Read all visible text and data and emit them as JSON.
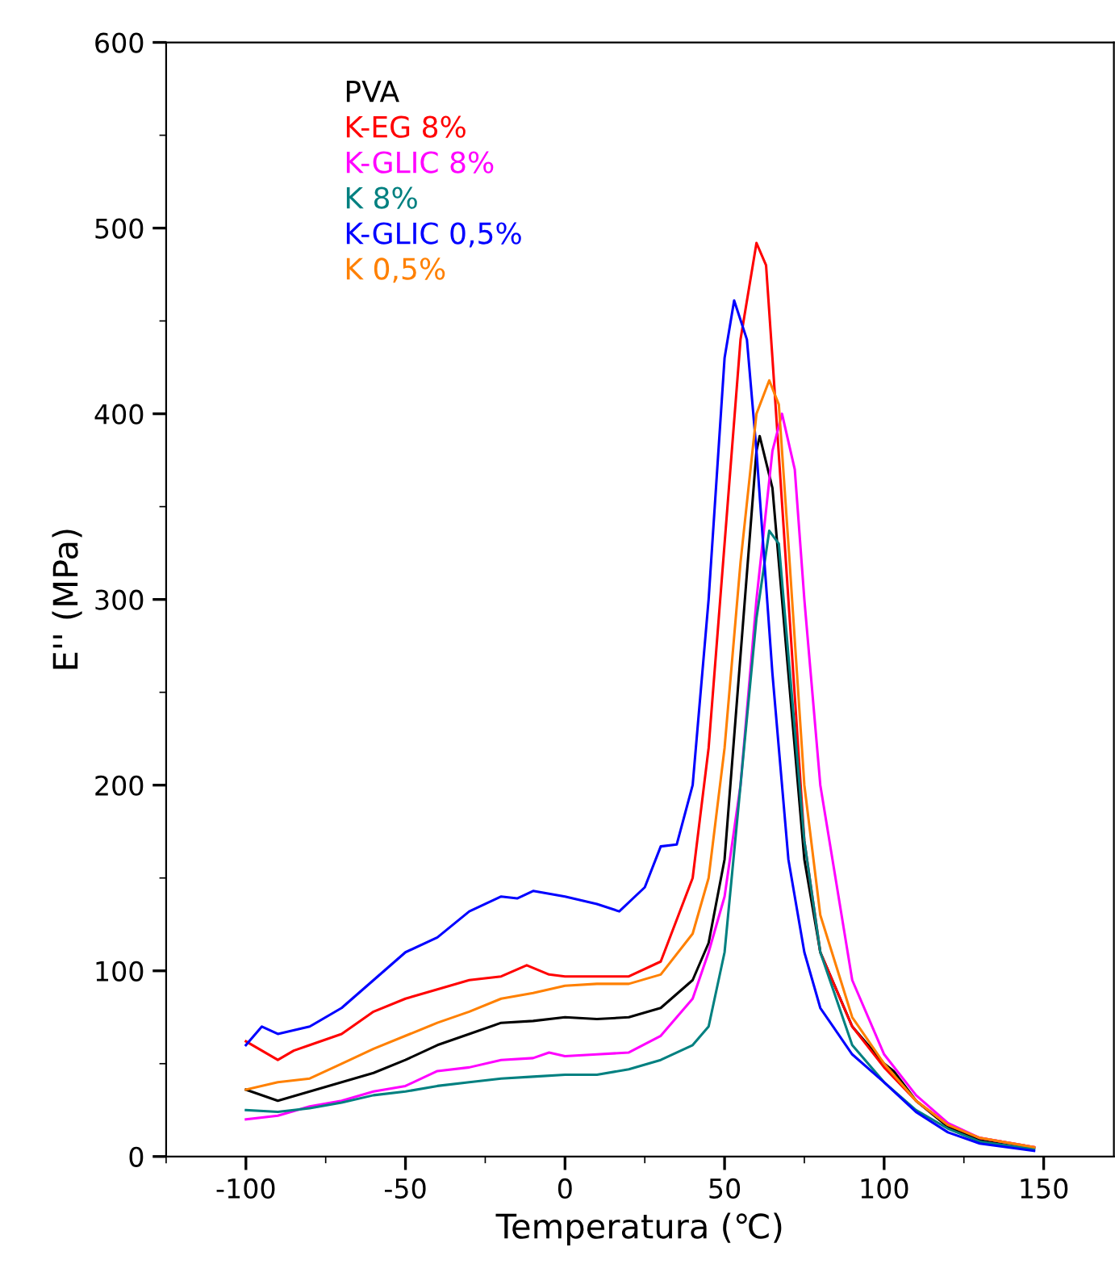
{
  "chart_data": {
    "type": "line",
    "xlabel": "Temperatura (℃)",
    "ylabel": "E'' (MPa)",
    "xlim": [
      -125,
      172
    ],
    "ylim": [
      0,
      600
    ],
    "xticks": [
      -100,
      -50,
      0,
      50,
      100,
      150
    ],
    "yticks": [
      0,
      100,
      200,
      300,
      400,
      500,
      600
    ],
    "grid": false,
    "legend": "top left",
    "line_style": "solid",
    "marker": "none",
    "series": [
      {
        "name": "PVA",
        "color": "#000000",
        "x": [
          -100,
          -90,
          -80,
          -70,
          -60,
          -50,
          -40,
          -30,
          -20,
          -10,
          0,
          10,
          20,
          30,
          40,
          45,
          50,
          55,
          60,
          61,
          65,
          70,
          75,
          80,
          90,
          100,
          103,
          110,
          120,
          130,
          147
        ],
        "values": [
          36,
          30,
          35,
          40,
          45,
          52,
          60,
          66,
          72,
          73,
          75,
          74,
          75,
          80,
          95,
          115,
          160,
          270,
          380,
          388,
          360,
          260,
          160,
          110,
          70,
          50,
          46,
          30,
          16,
          9,
          4.5
        ]
      },
      {
        "name": "K-EG 8%",
        "color": "#ff0000",
        "x": [
          -100,
          -90,
          -85,
          -80,
          -70,
          -60,
          -50,
          -40,
          -30,
          -20,
          -12,
          -5,
          0,
          10,
          20,
          30,
          40,
          45,
          50,
          55,
          60,
          63,
          65,
          70,
          75,
          80,
          90,
          100,
          110,
          120,
          130,
          147
        ],
        "values": [
          62,
          52,
          57,
          60,
          66,
          78,
          85,
          90,
          95,
          97,
          103,
          98,
          97,
          97,
          97,
          105,
          150,
          220,
          330,
          440,
          492,
          480,
          430,
          300,
          170,
          110,
          70,
          48,
          30,
          17,
          10,
          5
        ]
      },
      {
        "name": "K-GLIC 8%",
        "color": "#ff00ff",
        "x": [
          -100,
          -90,
          -80,
          -70,
          -60,
          -50,
          -40,
          -30,
          -20,
          -10,
          -5,
          0,
          10,
          20,
          30,
          40,
          45,
          50,
          55,
          60,
          65,
          68,
          72,
          75,
          80,
          90,
          100,
          110,
          120,
          130,
          147
        ],
        "values": [
          20,
          22,
          27,
          30,
          35,
          38,
          46,
          48,
          52,
          53,
          56,
          54,
          55,
          56,
          65,
          85,
          110,
          140,
          200,
          300,
          380,
          400,
          370,
          300,
          200,
          95,
          55,
          33,
          18,
          10,
          5
        ]
      },
      {
        "name": "K 8%",
        "color": "#008080",
        "x": [
          -100,
          -90,
          -80,
          -70,
          -60,
          -50,
          -40,
          -30,
          -20,
          -10,
          0,
          10,
          20,
          30,
          40,
          45,
          50,
          55,
          60,
          64,
          67,
          70,
          75,
          80,
          90,
          100,
          110,
          120,
          130,
          147
        ],
        "values": [
          25,
          24,
          26,
          29,
          33,
          35,
          38,
          40,
          42,
          43,
          44,
          44,
          47,
          52,
          60,
          70,
          110,
          200,
          290,
          337,
          330,
          270,
          170,
          110,
          60,
          40,
          25,
          15,
          8,
          4
        ]
      },
      {
        "name": "K-GLIC 0,5%",
        "color": "#0000ff",
        "x": [
          -100,
          -95,
          -90,
          -80,
          -70,
          -60,
          -50,
          -40,
          -30,
          -20,
          -15,
          -10,
          0,
          10,
          17,
          25,
          30,
          35,
          40,
          45,
          50,
          53,
          57,
          60,
          65,
          70,
          75,
          80,
          90,
          100,
          110,
          120,
          130,
          147
        ],
        "values": [
          60,
          70,
          66,
          70,
          80,
          95,
          110,
          118,
          132,
          140,
          139,
          143,
          140,
          136,
          132,
          145,
          167,
          168,
          200,
          300,
          430,
          461,
          440,
          380,
          260,
          160,
          110,
          80,
          55,
          40,
          24,
          13,
          7,
          3
        ]
      },
      {
        "name": "K 0,5%",
        "color": "#ff8000",
        "x": [
          -100,
          -90,
          -80,
          -70,
          -60,
          -50,
          -40,
          -30,
          -20,
          -10,
          0,
          10,
          20,
          30,
          40,
          45,
          50,
          55,
          60,
          64,
          67,
          70,
          75,
          80,
          90,
          100,
          110,
          120,
          130,
          147
        ],
        "values": [
          36,
          40,
          42,
          50,
          58,
          65,
          72,
          78,
          85,
          88,
          92,
          93,
          93,
          98,
          120,
          150,
          220,
          320,
          400,
          418,
          405,
          330,
          200,
          130,
          75,
          50,
          30,
          17,
          10,
          5
        ]
      }
    ]
  }
}
